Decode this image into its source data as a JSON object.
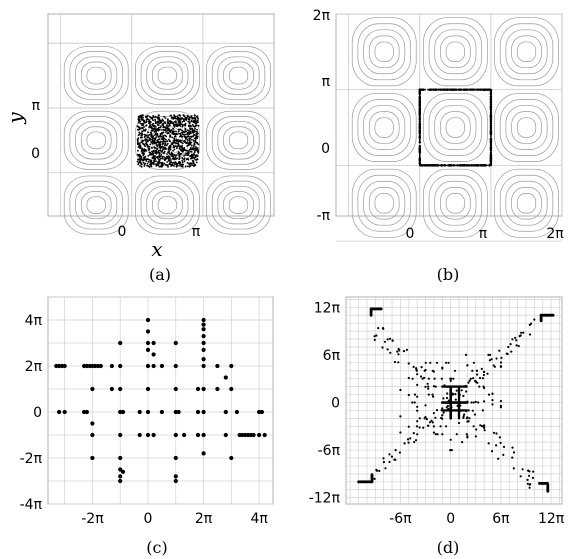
{
  "figure": {
    "captions": [
      "(a)",
      "(b)",
      "(c)",
      "(d)"
    ]
  },
  "chart_data": [
    {
      "id": "a",
      "type": "scatter",
      "xlabel": "x",
      "ylabel": "y",
      "xlim": [
        -3.7,
        6.28
      ],
      "ylim": [
        -2.1,
        7.7
      ],
      "xticks": [
        {
          "v": 0,
          "label": "0"
        },
        {
          "v": 3.1416,
          "label": "π"
        }
      ],
      "yticks": [
        {
          "v": 0,
          "label": "0"
        },
        {
          "v": 3.1416,
          "label": "π"
        }
      ],
      "grid": true,
      "background": "contour lines of a periodic cellular flow (3×3 cells)",
      "points": {
        "description": "uniform random cloud",
        "x_range": [
          0.25,
          2.95
        ],
        "y_range": [
          0.28,
          2.8
        ],
        "count": 1200
      }
    },
    {
      "id": "b",
      "type": "scatter",
      "xlim": [
        -3.7,
        6.28
      ],
      "ylim": [
        -2.1,
        6.28
      ],
      "xticks": [
        {
          "v": 0,
          "label": "0"
        },
        {
          "v": 3.1416,
          "label": "π"
        },
        {
          "v": 6.2832,
          "label": "2π"
        }
      ],
      "yticks": [
        {
          "v": -3.1416,
          "label": "-π"
        },
        {
          "v": 0,
          "label": "0"
        },
        {
          "v": 3.1416,
          "label": "π"
        },
        {
          "v": 6.2832,
          "label": "2π"
        }
      ],
      "grid": true,
      "background": "contour lines of a periodic cellular flow (3×3 cells)",
      "points": {
        "description": "points on the boundary of the square [0, π]×[0, π]",
        "square": [
          0,
          0,
          3.1416,
          3.1416
        ]
      }
    },
    {
      "id": "c",
      "type": "scatter",
      "xlim": [
        -3.6,
        4.5
      ],
      "ylim": [
        -4,
        5
      ],
      "unit": "π",
      "xticks": [
        {
          "v": -2,
          "label": "-2π"
        },
        {
          "v": 0,
          "label": "0"
        },
        {
          "v": 2,
          "label": "2π"
        },
        {
          "v": 4,
          "label": "4π"
        }
      ],
      "yticks": [
        {
          "v": -4,
          "label": "-4π"
        },
        {
          "v": -2,
          "label": "-2π"
        },
        {
          "v": 0,
          "label": "0"
        },
        {
          "v": 2,
          "label": "2π"
        },
        {
          "v": 4,
          "label": "4π"
        }
      ],
      "grid": true,
      "grid_step": 1,
      "points": [
        [
          -3.3,
          2
        ],
        [
          -3.2,
          2
        ],
        [
          -3.1,
          2
        ],
        [
          -3.0,
          2
        ],
        [
          -2.3,
          2
        ],
        [
          -2.2,
          2
        ],
        [
          -2.1,
          2
        ],
        [
          -2.0,
          2
        ],
        [
          -1.9,
          2
        ],
        [
          -1.8,
          2
        ],
        [
          -1.7,
          2
        ],
        [
          -3.2,
          0
        ],
        [
          -3.0,
          0
        ],
        [
          -2.3,
          0
        ],
        [
          -2.2,
          0
        ],
        [
          -2.0,
          1
        ],
        [
          -2.0,
          -0.5
        ],
        [
          -2.0,
          -1
        ],
        [
          -2.0,
          -2
        ],
        [
          -1.3,
          2
        ],
        [
          -1.3,
          1
        ],
        [
          -1.0,
          3
        ],
        [
          -1.0,
          2
        ],
        [
          -1.0,
          1
        ],
        [
          -1.0,
          0
        ],
        [
          -1.0,
          -1
        ],
        [
          -1.0,
          -2
        ],
        [
          -1.0,
          -2.5
        ],
        [
          -1.0,
          -2.8
        ],
        [
          -1.0,
          -3
        ],
        [
          -0.9,
          0
        ],
        [
          -0.9,
          -2.6
        ],
        [
          -0.3,
          0
        ],
        [
          -0.3,
          -1
        ],
        [
          0,
          4
        ],
        [
          0,
          3.5
        ],
        [
          0,
          3
        ],
        [
          0,
          2.7
        ],
        [
          0,
          2
        ],
        [
          0,
          1
        ],
        [
          0,
          0
        ],
        [
          0,
          -1
        ],
        [
          0.2,
          3
        ],
        [
          0.2,
          2.5
        ],
        [
          0.2,
          2
        ],
        [
          0.2,
          -1
        ],
        [
          0.5,
          2
        ],
        [
          0.5,
          0
        ],
        [
          1.0,
          3
        ],
        [
          1.0,
          2
        ],
        [
          1.0,
          1
        ],
        [
          1.0,
          0
        ],
        [
          1.0,
          -1
        ],
        [
          1.0,
          -2
        ],
        [
          1.0,
          -2.8
        ],
        [
          1.0,
          -3
        ],
        [
          1.1,
          0
        ],
        [
          1.3,
          -1
        ],
        [
          1.8,
          1
        ],
        [
          1.8,
          0
        ],
        [
          1.8,
          -1
        ],
        [
          2.0,
          4
        ],
        [
          2.0,
          3.8
        ],
        [
          2.0,
          3.6
        ],
        [
          2.0,
          3.3
        ],
        [
          2.0,
          3
        ],
        [
          2.0,
          2.7
        ],
        [
          2.0,
          2.3
        ],
        [
          2.0,
          2
        ],
        [
          2.0,
          1
        ],
        [
          2.0,
          0
        ],
        [
          2.0,
          -1
        ],
        [
          2.0,
          -1.8
        ],
        [
          2.5,
          2
        ],
        [
          2.5,
          1
        ],
        [
          2.8,
          0
        ],
        [
          2.8,
          -1
        ],
        [
          2.8,
          1.5
        ],
        [
          3.0,
          2
        ],
        [
          3.0,
          1
        ],
        [
          3.2,
          0
        ],
        [
          3.3,
          -1
        ],
        [
          3.4,
          -1
        ],
        [
          3.5,
          -1
        ],
        [
          3.6,
          -1
        ],
        [
          3.7,
          -1
        ],
        [
          3.8,
          -1
        ],
        [
          4.0,
          -1
        ],
        [
          4.2,
          -1
        ],
        [
          3.0,
          -2
        ],
        [
          4.0,
          0
        ],
        [
          4.1,
          0
        ]
      ]
    },
    {
      "id": "d",
      "type": "scatter",
      "xlim": [
        -12.5,
        13.3
      ],
      "ylim": [
        -12.8,
        13.3
      ],
      "unit": "π",
      "xticks": [
        {
          "v": -6,
          "label": "-6π"
        },
        {
          "v": 0,
          "label": "0"
        },
        {
          "v": 6,
          "label": "6π"
        },
        {
          "v": 12,
          "label": "12π"
        }
      ],
      "yticks": [
        {
          "v": -12,
          "label": "-12π"
        },
        {
          "v": -6,
          "label": "-6π"
        },
        {
          "v": 0,
          "label": "0"
        },
        {
          "v": 6,
          "label": "6π"
        },
        {
          "v": 12,
          "label": "12π"
        }
      ],
      "grid": true,
      "grid_step": 1,
      "points": {
        "description": "X-shaped spread of points along both diagonals with dense segments near the corners and the origin"
      }
    }
  ]
}
